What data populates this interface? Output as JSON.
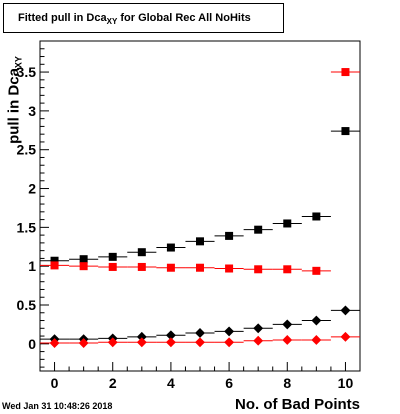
{
  "title": {
    "main": "Fitted pull in Dca",
    "sub": "XY",
    "rest": " for Global Rec All NoHits"
  },
  "ylabel": {
    "main": "pull in Dca",
    "sub": "XY"
  },
  "xlabel": "No. of Bad Points",
  "timestamp": "Wed Jan 31 10:48:26 2018",
  "chart_data": {
    "type": "scatter",
    "xlim": [
      -0.5,
      10.5
    ],
    "ylim": [
      -0.35,
      3.9
    ],
    "xticks": [
      0,
      2,
      4,
      6,
      8,
      10
    ],
    "yticks": [
      0,
      0.5,
      1,
      1.5,
      2,
      2.5,
      3,
      3.5
    ],
    "ytick_labels": [
      "0",
      "0.5",
      "1",
      "1.5",
      "2",
      "2.5",
      "3",
      "3.5"
    ],
    "series": [
      {
        "marker": "square",
        "color": "#000000",
        "x": [
          0,
          1,
          2,
          3,
          4,
          5,
          6,
          7,
          8,
          9,
          10
        ],
        "y": [
          1.07,
          1.09,
          1.12,
          1.18,
          1.24,
          1.32,
          1.39,
          1.47,
          1.55,
          1.64,
          2.74
        ]
      },
      {
        "marker": "square",
        "color": "#ff0000",
        "x": [
          0,
          1,
          2,
          3,
          4,
          5,
          6,
          7,
          8,
          9,
          10
        ],
        "y": [
          1.01,
          1.0,
          0.99,
          0.99,
          0.98,
          0.98,
          0.97,
          0.96,
          0.96,
          0.94,
          3.5
        ]
      },
      {
        "marker": "circle",
        "color": "#000000",
        "x": [
          0,
          1,
          2,
          3,
          4,
          5,
          6,
          7,
          8,
          9,
          10
        ],
        "y": [
          0.06,
          0.06,
          0.07,
          0.09,
          0.11,
          0.14,
          0.16,
          0.2,
          0.25,
          0.3,
          0.43
        ]
      },
      {
        "marker": "circle",
        "color": "#ff0000",
        "x": [
          0,
          1,
          2,
          3,
          4,
          5,
          6,
          7,
          8,
          9,
          10
        ],
        "y": [
          0.01,
          0.01,
          0.02,
          0.02,
          0.02,
          0.02,
          0.02,
          0.04,
          0.05,
          0.05,
          0.09
        ]
      }
    ]
  }
}
